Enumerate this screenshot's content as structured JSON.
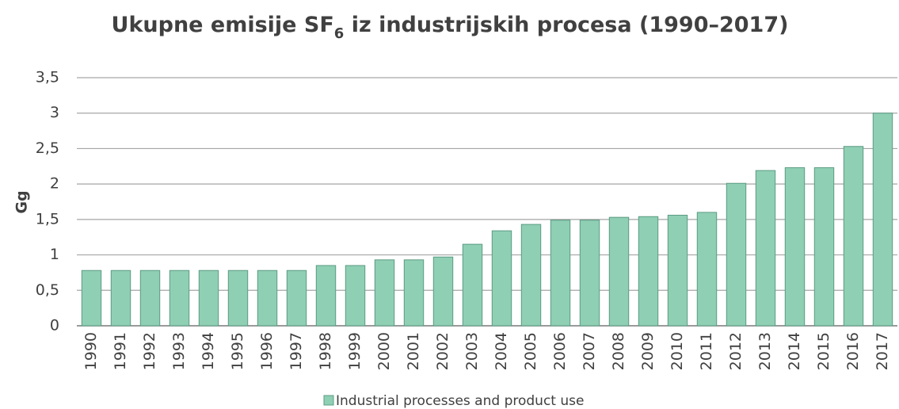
{
  "chart_data": {
    "type": "bar",
    "title": [
      "Ukupne emisije SF",
      "6",
      " iz industrijskih procesa (1990–2017)"
    ],
    "y_label": "Gg",
    "categories": [
      "1990",
      "1991",
      "1992",
      "1993",
      "1994",
      "1995",
      "1996",
      "1997",
      "1998",
      "1999",
      "2000",
      "2001",
      "2002",
      "2003",
      "2004",
      "2005",
      "2006",
      "2007",
      "2008",
      "2009",
      "2010",
      "2011",
      "2012",
      "2013",
      "2014",
      "2015",
      "2016",
      "2017"
    ],
    "series": [
      {
        "name": "Industrial processes and product use",
        "color": "#8fcfb4",
        "values": [
          0.78,
          0.78,
          0.78,
          0.78,
          0.78,
          0.78,
          0.78,
          0.78,
          0.85,
          0.85,
          0.93,
          0.93,
          0.97,
          1.15,
          1.34,
          1.43,
          1.49,
          1.49,
          1.53,
          1.54,
          1.56,
          1.6,
          2.01,
          2.19,
          2.23,
          2.23,
          2.53,
          3.0
        ]
      }
    ],
    "ylim": [
      0,
      3.5
    ],
    "yticks": [
      0,
      {
        "value": 0.5,
        "label": "0,5"
      },
      1,
      {
        "value": 1.5,
        "label": "1,5"
      },
      2,
      {
        "value": 2.5,
        "label": "2,5"
      },
      3,
      {
        "value": 3.5,
        "label": "3,5"
      }
    ],
    "grid": true,
    "legend": "bottom"
  }
}
